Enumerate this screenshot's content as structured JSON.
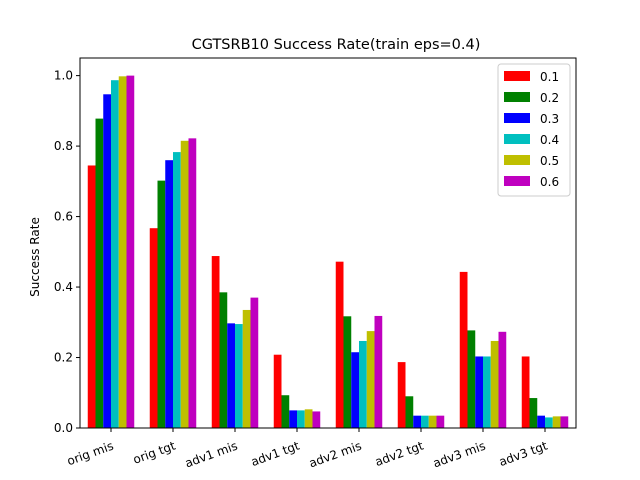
{
  "chart_data": {
    "type": "bar",
    "title": "CGTSRB10 Success Rate(train eps=0.4)",
    "xlabel": "",
    "ylabel": "Success Rate",
    "ylim": [
      0,
      1.05
    ],
    "yticks": [
      "0.0",
      "0.2",
      "0.4",
      "0.6",
      "0.8",
      "1.0"
    ],
    "categories": [
      "orig mis",
      "orig tgt",
      "adv1 mis",
      "adv1 tgt",
      "adv2 mis",
      "adv2 tgt",
      "adv3 mis",
      "adv3 tgt"
    ],
    "grid": false,
    "legend_position": "top-right",
    "series": [
      {
        "name": "0.1",
        "color": "#ff0000",
        "values": [
          0.745,
          0.567,
          0.488,
          0.208,
          0.472,
          0.187,
          0.443,
          0.203
        ]
      },
      {
        "name": "0.2",
        "color": "#008000",
        "values": [
          0.878,
          0.702,
          0.385,
          0.093,
          0.317,
          0.09,
          0.277,
          0.085
        ]
      },
      {
        "name": "0.3",
        "color": "#0000ff",
        "values": [
          0.947,
          0.76,
          0.297,
          0.05,
          0.215,
          0.035,
          0.203,
          0.035
        ]
      },
      {
        "name": "0.4",
        "color": "#00bfbf",
        "values": [
          0.987,
          0.783,
          0.295,
          0.05,
          0.247,
          0.035,
          0.203,
          0.03
        ]
      },
      {
        "name": "0.5",
        "color": "#bfbf00",
        "values": [
          0.998,
          0.815,
          0.335,
          0.053,
          0.275,
          0.035,
          0.247,
          0.033
        ]
      },
      {
        "name": "0.6",
        "color": "#bf00bf",
        "values": [
          1.0,
          0.822,
          0.37,
          0.047,
          0.318,
          0.035,
          0.273,
          0.033
        ]
      }
    ]
  }
}
